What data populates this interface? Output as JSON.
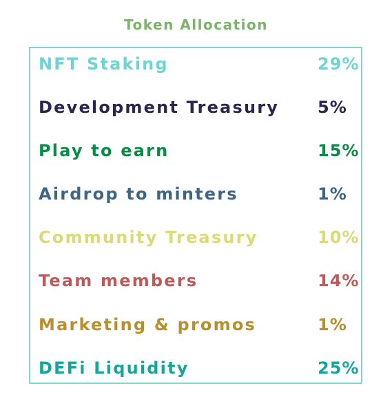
{
  "title": "Token Allocation",
  "allocations": [
    {
      "label": "NFT Staking",
      "percent": "29%",
      "color": "#6fd3d3"
    },
    {
      "label": "Development Treasury",
      "percent": "5%",
      "color": "#2b2650"
    },
    {
      "label": "Play to earn",
      "percent": "15%",
      "color": "#0b8a47"
    },
    {
      "label": "Airdrop to minters",
      "percent": "1%",
      "color": "#3c6587"
    },
    {
      "label": "Community Treasury",
      "percent": "10%",
      "color": "#dada78"
    },
    {
      "label": "Team members",
      "percent": "14%",
      "color": "#c0585a"
    },
    {
      "label": "Marketing & promos",
      "percent": "1%",
      "color": "#b98f2a"
    },
    {
      "label": "DEFi Liquidity",
      "percent": "25%",
      "color": "#12a79a"
    }
  ]
}
